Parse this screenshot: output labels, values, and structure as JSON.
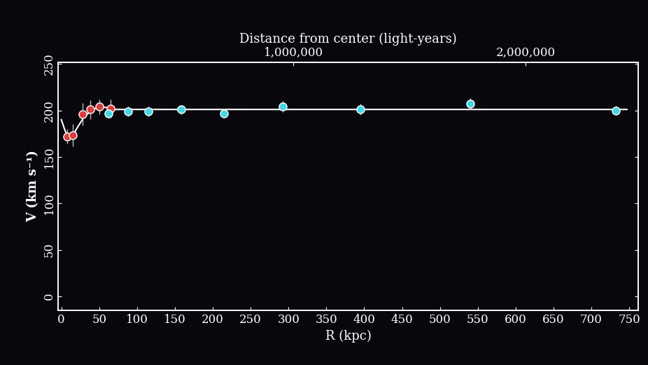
{
  "chart_data": {
    "type": "scatter",
    "xlabel": "R (kpc)",
    "ylabel": "V (km s⁻¹)",
    "x2label": "Distance from center (light-years)",
    "xlim": [
      -4,
      762
    ],
    "ylim": [
      -15,
      252
    ],
    "xticks": [
      0,
      50,
      100,
      150,
      200,
      250,
      300,
      350,
      400,
      450,
      500,
      550,
      600,
      650,
      700,
      750
    ],
    "yticks": [
      0,
      50,
      100,
      150,
      200,
      250
    ],
    "x2lim": [
      -13000,
      2485000
    ],
    "x2ticks": [
      {
        "value": 1000000,
        "label": "1,000,000"
      },
      {
        "value": 2000000,
        "label": "2,000,000"
      }
    ],
    "grid": false,
    "series": [
      {
        "type": "line",
        "color": "#ffffff",
        "line_style": "solid",
        "x": [
          0,
          5,
          10,
          15,
          20,
          30,
          40,
          50,
          60,
          70,
          100,
          200,
          300,
          400,
          500,
          600,
          700,
          747
        ],
        "values": [
          190,
          178,
          170,
          172,
          180,
          193,
          200,
          204,
          203,
          201,
          201,
          201,
          201,
          201,
          201,
          201,
          201,
          201
        ]
      },
      {
        "type": "scatter",
        "color": "#e03a3a",
        "marker": "o",
        "x": [
          8,
          15,
          28,
          38,
          50,
          65
        ],
        "values": [
          172,
          173,
          196,
          201,
          204,
          202
        ],
        "errors": [
          8,
          12,
          12,
          10,
          8,
          10
        ]
      },
      {
        "type": "scatter",
        "color": "#3fd8e8",
        "marker": "o",
        "x": [
          62,
          88,
          115,
          158,
          215,
          292,
          395,
          540,
          732
        ],
        "values": [
          197,
          199,
          199,
          201,
          197,
          204,
          201,
          207,
          200
        ],
        "errors": [
          5,
          5,
          5,
          5,
          5,
          6,
          6,
          6,
          5
        ]
      }
    ]
  }
}
